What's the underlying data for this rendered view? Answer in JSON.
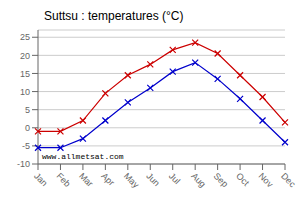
{
  "chart_data": {
    "type": "line",
    "title": "Suttsu : temperatures (°C)",
    "categories": [
      "Jan",
      "Feb",
      "Mar",
      "Apr",
      "May",
      "Jun",
      "Jul",
      "Aug",
      "Sep",
      "Oct",
      "Nov",
      "Dec"
    ],
    "series": [
      {
        "color": "#cc0000",
        "marker": "x",
        "values": [
          -1,
          -1,
          2,
          9.5,
          14.5,
          17.5,
          21.5,
          23.5,
          20.5,
          14.5,
          8.5,
          1.5
        ]
      },
      {
        "color": "#0000cc",
        "marker": "x",
        "values": [
          -5.5,
          -5.5,
          -3,
          2,
          7,
          11,
          15.5,
          18,
          13.5,
          8,
          2,
          -4
        ]
      }
    ],
    "ylim": [
      -10,
      27
    ],
    "yticks": [
      -10,
      -5,
      0,
      5,
      10,
      15,
      20,
      25
    ],
    "grid": true,
    "annotations": [
      "www.allmetsat.com"
    ]
  }
}
